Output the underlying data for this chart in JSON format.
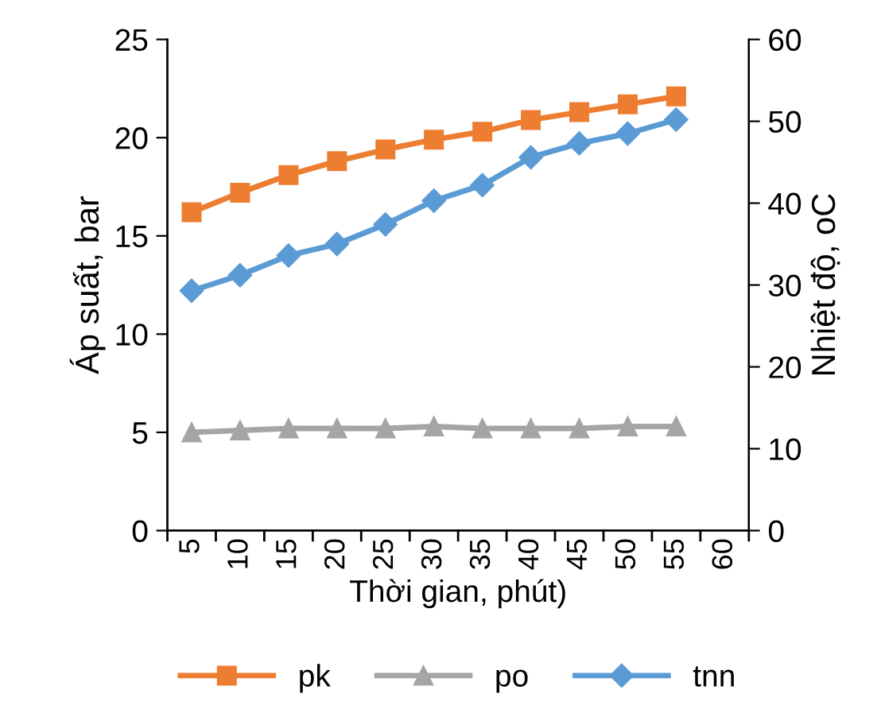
{
  "chart_data": {
    "type": "line",
    "xlabel": "Thời gian, phút)",
    "ylabel": "Áp suất, bar",
    "y2label": "Nhiệt độ, oC",
    "categories": [
      "5",
      "10",
      "15",
      "20",
      "25",
      "30",
      "35",
      "40",
      "45",
      "50",
      "55",
      "60"
    ],
    "series": [
      {
        "name": "pk",
        "color": "#ed7d31",
        "marker": "square",
        "values": [
          16.2,
          17.2,
          18.1,
          18.8,
          19.4,
          19.9,
          20.3,
          20.9,
          21.3,
          21.7,
          22.1,
          null
        ]
      },
      {
        "name": "po",
        "color": "#a5a5a5",
        "marker": "triangle",
        "values": [
          5.0,
          5.1,
          5.2,
          5.2,
          5.2,
          5.3,
          5.2,
          5.2,
          5.2,
          5.3,
          5.3,
          null
        ]
      },
      {
        "name": "tnn",
        "color": "#5b9bd5",
        "marker": "diamond",
        "axis": "y2",
        "values": [
          29.3,
          31.2,
          33.6,
          35.0,
          37.4,
          40.3,
          42.2,
          45.6,
          47.3,
          48.5,
          50.2,
          null
        ]
      }
    ],
    "ylim": [
      0,
      25
    ],
    "yticks": [
      0,
      5,
      10,
      15,
      20,
      25
    ],
    "y2lim": [
      0,
      60
    ],
    "y2ticks": [
      0,
      10,
      20,
      30,
      40,
      50,
      60
    ],
    "grid": false,
    "legend": "bottom"
  }
}
